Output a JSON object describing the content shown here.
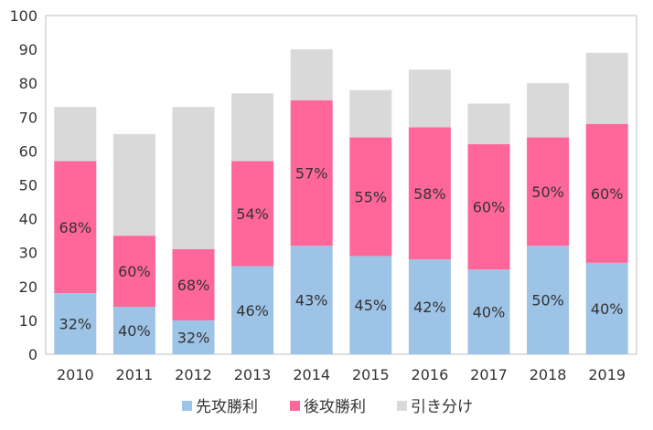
{
  "chart_data": {
    "type": "bar",
    "stacked": true,
    "categories": [
      "2010",
      "2011",
      "2012",
      "2013",
      "2014",
      "2015",
      "2016",
      "2017",
      "2018",
      "2019"
    ],
    "series": [
      {
        "name": "先攻勝利",
        "color": "#9dc3e6",
        "values": [
          18,
          14,
          10,
          26,
          32,
          29,
          28,
          25,
          32,
          27
        ],
        "labels": [
          "32%",
          "40%",
          "32%",
          "46%",
          "43%",
          "45%",
          "42%",
          "40%",
          "50%",
          "40%"
        ]
      },
      {
        "name": "後攻勝利",
        "color": "#ff6699",
        "values": [
          39,
          21,
          21,
          31,
          43,
          35,
          39,
          37,
          32,
          41
        ],
        "labels": [
          "68%",
          "60%",
          "68%",
          "54%",
          "57%",
          "55%",
          "58%",
          "60%",
          "50%",
          "60%"
        ]
      },
      {
        "name": "引き分け",
        "color": "#d9d9d9",
        "values": [
          16,
          30,
          42,
          20,
          15,
          14,
          17,
          12,
          16,
          21
        ],
        "labels": []
      }
    ],
    "yticks": [
      "0",
      "10",
      "20",
      "30",
      "40",
      "50",
      "60",
      "70",
      "80",
      "90",
      "100"
    ],
    "ylim": [
      0,
      100
    ],
    "title": "",
    "xlabel": "",
    "ylabel": "",
    "legend_position": "bottom"
  }
}
